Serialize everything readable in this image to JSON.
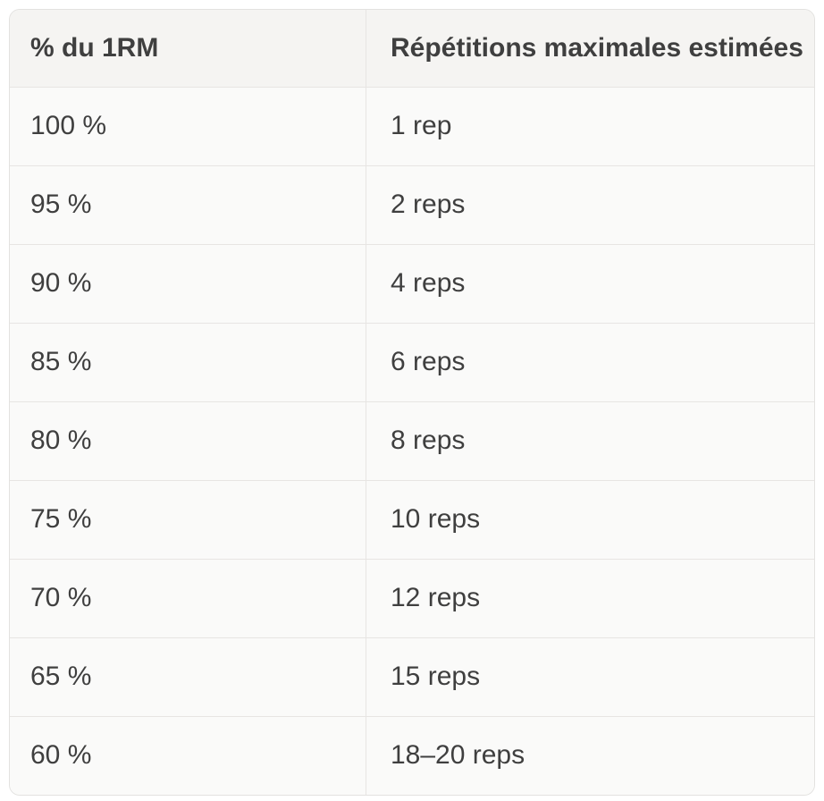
{
  "table": {
    "columns": [
      {
        "label": "% du 1RM"
      },
      {
        "label": "Répétitions maximales estimées"
      }
    ],
    "rows": [
      {
        "percent": "100 %",
        "reps": "1 rep"
      },
      {
        "percent": "95 %",
        "reps": "2 reps"
      },
      {
        "percent": "90 %",
        "reps": "4 reps"
      },
      {
        "percent": "85 %",
        "reps": "6 reps"
      },
      {
        "percent": "80 %",
        "reps": "8 reps"
      },
      {
        "percent": "75 %",
        "reps": "10 reps"
      },
      {
        "percent": "70 %",
        "reps": "12 reps"
      },
      {
        "percent": "65 %",
        "reps": "15 reps"
      },
      {
        "percent": "60 %",
        "reps": "18–20 reps"
      }
    ]
  },
  "chart_data": {
    "type": "table",
    "title": "",
    "columns": [
      "% du 1RM",
      "Répétitions maximales estimées"
    ],
    "rows": [
      [
        "100 %",
        "1 rep"
      ],
      [
        "95 %",
        "2 reps"
      ],
      [
        "90 %",
        "4 reps"
      ],
      [
        "85 %",
        "6 reps"
      ],
      [
        "80 %",
        "8 reps"
      ],
      [
        "75 %",
        "10 reps"
      ],
      [
        "70 %",
        "12 reps"
      ],
      [
        "65 %",
        "15 reps"
      ],
      [
        "60 %",
        "18–20 reps"
      ]
    ]
  },
  "colors": {
    "page_background": "#ffffff",
    "header_background": "#f5f4f2",
    "body_background": "#fafaf9",
    "border": "#e7e5e3",
    "text": "#3f3f3f"
  }
}
